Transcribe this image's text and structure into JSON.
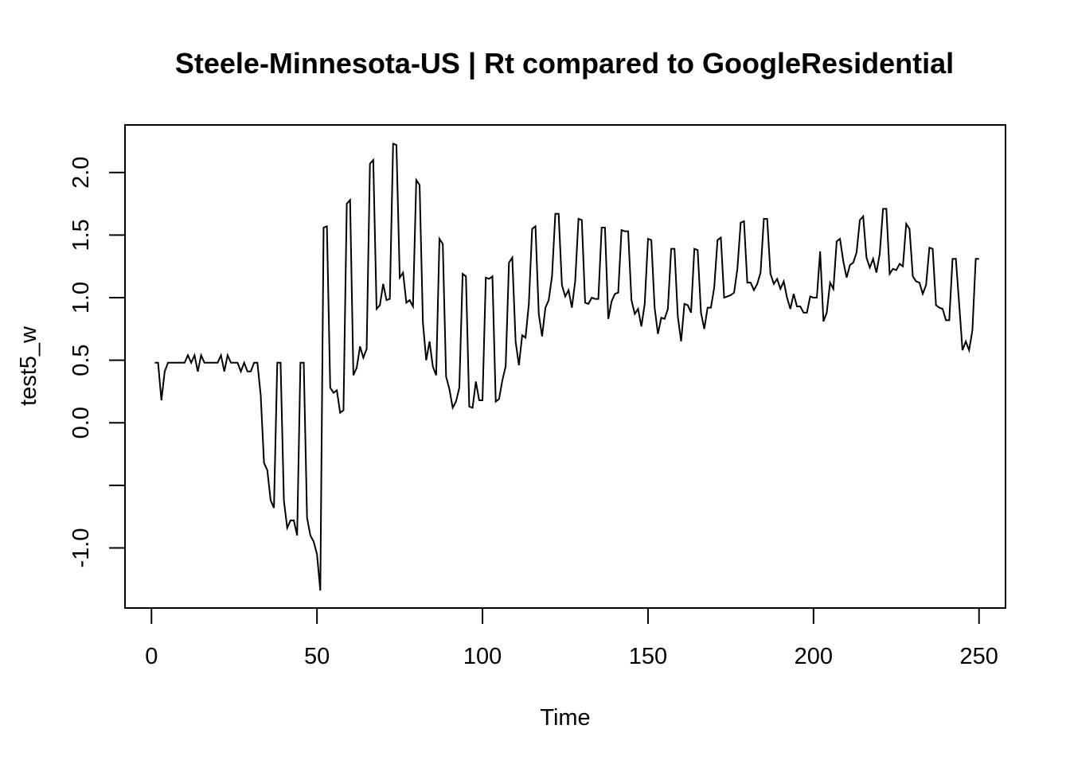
{
  "chart_data": {
    "type": "line",
    "title": "Steele-Minnesota-US | Rt compared to GoogleResidential",
    "xlabel": "Time",
    "ylabel": "test5_w",
    "xlim": [
      -8,
      258
    ],
    "ylim": [
      -1.48,
      2.38
    ],
    "x_ticks": [
      0,
      50,
      100,
      150,
      200,
      250
    ],
    "x_tick_labels": [
      "0",
      "50",
      "100",
      "150",
      "200",
      "250"
    ],
    "y_ticks": [
      -1.0,
      -0.5,
      0.0,
      0.5,
      1.0,
      1.5,
      2.0
    ],
    "y_tick_labels": [
      "-1.0",
      "",
      "0.0",
      "0.5",
      "1.0",
      "1.5",
      "2.0"
    ],
    "grid": false,
    "legend": "none",
    "line_color": "#000000",
    "series": [
      {
        "x_start": 1,
        "values": [
          0.48,
          0.48,
          0.18,
          0.41,
          0.48,
          0.48,
          0.48,
          0.48,
          0.48,
          0.48,
          0.54,
          0.48,
          0.54,
          0.41,
          0.54,
          0.48,
          0.48,
          0.48,
          0.48,
          0.48,
          0.54,
          0.41,
          0.54,
          0.48,
          0.48,
          0.48,
          0.41,
          0.48,
          0.41,
          0.41,
          0.48,
          0.48,
          0.22,
          -0.32,
          -0.38,
          -0.62,
          -0.68,
          0.48,
          0.48,
          -0.62,
          -0.84,
          -0.78,
          -0.78,
          -0.9,
          0.48,
          0.48,
          -0.76,
          -0.9,
          -0.95,
          -1.05,
          -1.34,
          1.56,
          1.57,
          0.28,
          0.24,
          0.26,
          0.08,
          0.1,
          1.75,
          1.78,
          0.38,
          0.44,
          0.61,
          0.52,
          0.59,
          2.07,
          2.1,
          0.91,
          0.94,
          1.11,
          0.98,
          0.99,
          2.23,
          2.22,
          1.16,
          1.2,
          0.96,
          0.98,
          0.93,
          1.94,
          1.9,
          0.8,
          0.5,
          0.65,
          0.45,
          0.38,
          1.47,
          1.43,
          0.37,
          0.27,
          0.12,
          0.17,
          0.28,
          1.19,
          1.17,
          0.13,
          0.12,
          0.33,
          0.18,
          0.18,
          1.16,
          1.15,
          1.17,
          0.17,
          0.19,
          0.34,
          0.45,
          1.28,
          1.32,
          0.65,
          0.46,
          0.7,
          0.68,
          0.95,
          1.55,
          1.57,
          0.87,
          0.69,
          0.92,
          0.98,
          1.17,
          1.67,
          1.67,
          1.1,
          1.01,
          1.06,
          0.92,
          1.13,
          1.63,
          1.62,
          0.96,
          0.95,
          1.0,
          0.99,
          0.99,
          1.56,
          1.56,
          0.83,
          0.97,
          1.03,
          1.04,
          1.54,
          1.53,
          1.53,
          0.98,
          0.87,
          0.91,
          0.77,
          0.95,
          1.47,
          1.46,
          0.92,
          0.71,
          0.84,
          0.83,
          0.91,
          1.39,
          1.39,
          0.85,
          0.65,
          0.95,
          0.94,
          0.88,
          1.39,
          1.38,
          0.88,
          0.75,
          0.92,
          0.92,
          1.08,
          1.46,
          1.48,
          1.0,
          1.01,
          1.02,
          1.04,
          1.23,
          1.6,
          1.61,
          1.12,
          1.12,
          1.06,
          1.11,
          1.2,
          1.63,
          1.63,
          1.19,
          1.11,
          1.15,
          1.07,
          1.13,
          1.0,
          0.91,
          1.03,
          0.93,
          0.93,
          0.88,
          0.88,
          1.01,
          1.0,
          1.0,
          1.37,
          0.81,
          0.88,
          1.12,
          1.07,
          1.45,
          1.47,
          1.29,
          1.16,
          1.26,
          1.28,
          1.36,
          1.62,
          1.65,
          1.32,
          1.24,
          1.31,
          1.2,
          1.35,
          1.71,
          1.71,
          1.19,
          1.23,
          1.22,
          1.27,
          1.25,
          1.59,
          1.55,
          1.17,
          1.13,
          1.12,
          1.03,
          1.1,
          1.4,
          1.39,
          0.94,
          0.92,
          0.91,
          0.82,
          0.82,
          1.31,
          1.31,
          0.95,
          0.58,
          0.65,
          0.58,
          0.74,
          1.31,
          1.31
        ]
      }
    ]
  }
}
